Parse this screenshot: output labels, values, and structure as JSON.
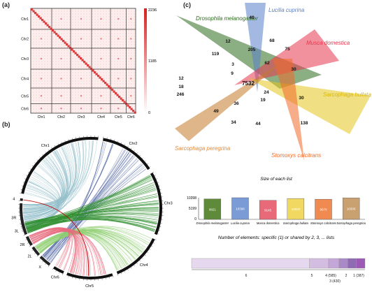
{
  "panels": {
    "a": "(a)",
    "b": "(b)",
    "c": "(c)"
  },
  "heatmap": {
    "chromosomes": [
      "Chr1",
      "Chr2",
      "Chr3",
      "Chr4",
      "Chr5",
      "Chr6"
    ],
    "colorbar_ticks": [
      "2236",
      "1185",
      "0"
    ],
    "colors": {
      "low": "#ffffff",
      "high": "#d62020",
      "border": "#333333"
    }
  },
  "circos": {
    "segments": [
      "3R",
      "4",
      "Chr1",
      "Chr2",
      "Chr3",
      "Chr4",
      "Chr5",
      "Chr6",
      "X",
      "2L",
      "2R",
      "3L"
    ],
    "colors": {
      "3R": "#8fbcc8",
      "X": "#4a5fa0",
      "2L": "#8fcf70",
      "2R": "#e86b7d",
      "3L": "#2f8f2f",
      "4": "#c01010"
    }
  },
  "venn": {
    "species": [
      {
        "name": "Drosophila melanogaster",
        "color": "#2e6b1e"
      },
      {
        "name": "Lucilia cuprina",
        "color": "#5a7fc8"
      },
      {
        "name": "Musca domestica",
        "color": "#e8364e"
      },
      {
        "name": "Sarcophaga bullata",
        "color": "#e3c51e"
      },
      {
        "name": "Stomoxys calcitrans",
        "color": "#f06a28"
      },
      {
        "name": "Sarcophaga peregrina",
        "color": "#c47a2a"
      }
    ],
    "counts": [
      "12",
      "40",
      "68",
      "119",
      "205",
      "75",
      "3",
      "62",
      "30",
      "12",
      "18",
      "246",
      "7532",
      "24",
      "30",
      "9",
      "36",
      "19",
      "49",
      "34",
      "44",
      "138"
    ]
  },
  "bar_section": {
    "title": "Size of each list",
    "y_ticks": [
      "10398",
      "5199",
      "0"
    ]
  },
  "upset": {
    "title": "Number of elements: specific (1) or shared by 2, 3, ... lists",
    "labels": [
      "6",
      "5",
      "4 (585)",
      "3 (430)",
      "2",
      "1 (387)"
    ]
  },
  "chart_data": [
    {
      "type": "bar",
      "title": "Size of each list",
      "categories": [
        "Drosophila melanogaster",
        "Lucilia cuprina",
        "Musca domestica",
        "Sarcophaga bullata",
        "Stomoxys calcitrans",
        "Sarcophaga peregrina"
      ],
      "values": [
        9821,
        10398,
        9145,
        10020,
        9670,
        10300
      ],
      "value_labels": [
        "9821",
        "10398",
        "9145",
        "10020",
        "9670",
        "10300"
      ],
      "colors": [
        "#5e8a3a",
        "#7a9bd6",
        "#e86a78",
        "#f1d860",
        "#f08a50",
        "#c9a070"
      ],
      "ylim": [
        0,
        10398
      ]
    },
    {
      "type": "bar",
      "title": "Number of elements: specific (1) or shared by 2, 3, ... lists",
      "categories": [
        "6",
        "5",
        "4",
        "3",
        "2",
        "1"
      ],
      "values": [
        7532,
        1300,
        585,
        430,
        200,
        387
      ],
      "colors": [
        "#e6d8ee",
        "#d3bde0",
        "#c4a6d8",
        "#a98ac6",
        "#8f6cb2",
        "#9d5ab5"
      ]
    }
  ]
}
